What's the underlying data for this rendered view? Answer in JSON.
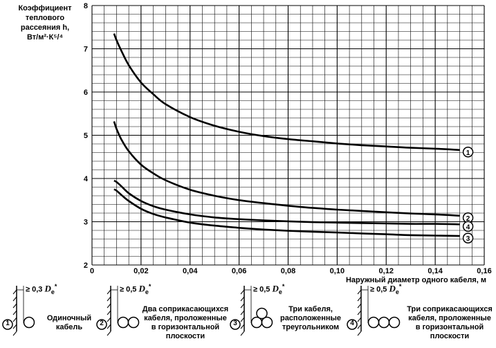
{
  "chart_data": {
    "type": "line",
    "ylabel_lines": [
      "Коэффициент",
      "теплового",
      "рассеяния h,",
      "Вт/м²·К⁵/⁴"
    ],
    "ylabel_text": "Коэффициент теплового рассеяния h, Вт/м2·К5/4",
    "xlabel": "Наружный диаметр одного кабеля, м",
    "xlim": [
      0,
      0.16
    ],
    "ylim": [
      2,
      8
    ],
    "x_ticks": [
      "0",
      "0,02",
      "0,04",
      "0,06",
      "0,08",
      "0,10",
      "0,12",
      "0,14",
      "0,16"
    ],
    "y_ticks": [
      "2",
      "3",
      "4",
      "5",
      "6",
      "7",
      "8"
    ],
    "grid": true,
    "x": [
      0.009,
      0.01,
      0.012,
      0.015,
      0.02,
      0.025,
      0.03,
      0.04,
      0.05,
      0.06,
      0.07,
      0.08,
      0.09,
      0.1,
      0.11,
      0.12,
      0.13,
      0.14,
      0.15
    ],
    "series": [
      {
        "name": "1",
        "values": [
          7.35,
          7.2,
          6.95,
          6.62,
          6.22,
          5.95,
          5.72,
          5.42,
          5.22,
          5.08,
          4.98,
          4.91,
          4.86,
          4.81,
          4.77,
          4.74,
          4.71,
          4.69,
          4.66
        ]
      },
      {
        "name": "2",
        "values": [
          5.32,
          5.15,
          4.9,
          4.63,
          4.32,
          4.12,
          3.96,
          3.74,
          3.6,
          3.5,
          3.43,
          3.37,
          3.32,
          3.28,
          3.25,
          3.22,
          3.19,
          3.17,
          3.14
        ]
      },
      {
        "name": "3",
        "values": [
          3.75,
          3.72,
          3.62,
          3.48,
          3.3,
          3.18,
          3.1,
          2.98,
          2.91,
          2.86,
          2.82,
          2.79,
          2.77,
          2.75,
          2.73,
          2.71,
          2.69,
          2.68,
          2.67
        ]
      },
      {
        "name": "4",
        "values": [
          3.95,
          3.92,
          3.82,
          3.66,
          3.48,
          3.36,
          3.28,
          3.17,
          3.1,
          3.06,
          3.03,
          3.01,
          2.99,
          2.98,
          2.97,
          2.96,
          2.95,
          2.95,
          2.94
        ]
      }
    ]
  },
  "legend": [
    {
      "num": "1",
      "spacing": "≥ 0,3",
      "lines": [
        "Одиночный",
        "кабель"
      ]
    },
    {
      "num": "2",
      "spacing": "≥ 0,5",
      "lines": [
        "Два соприкасающихся",
        "кабеля, проложенные",
        "в горизонтальной",
        "плоскости"
      ]
    },
    {
      "num": "3",
      "spacing": "≥ 0,5",
      "lines": [
        "Три кабеля,",
        "расположенные",
        "треугольником"
      ]
    },
    {
      "num": "4",
      "spacing": "≥ 0,5",
      "lines": [
        "Три соприкасающихся",
        "кабеля, проложенные",
        "в горизонтальной",
        "плоскости"
      ]
    }
  ],
  "diameter_symbol": "D",
  "diameter_sub": "e",
  "diameter_sup": "*"
}
